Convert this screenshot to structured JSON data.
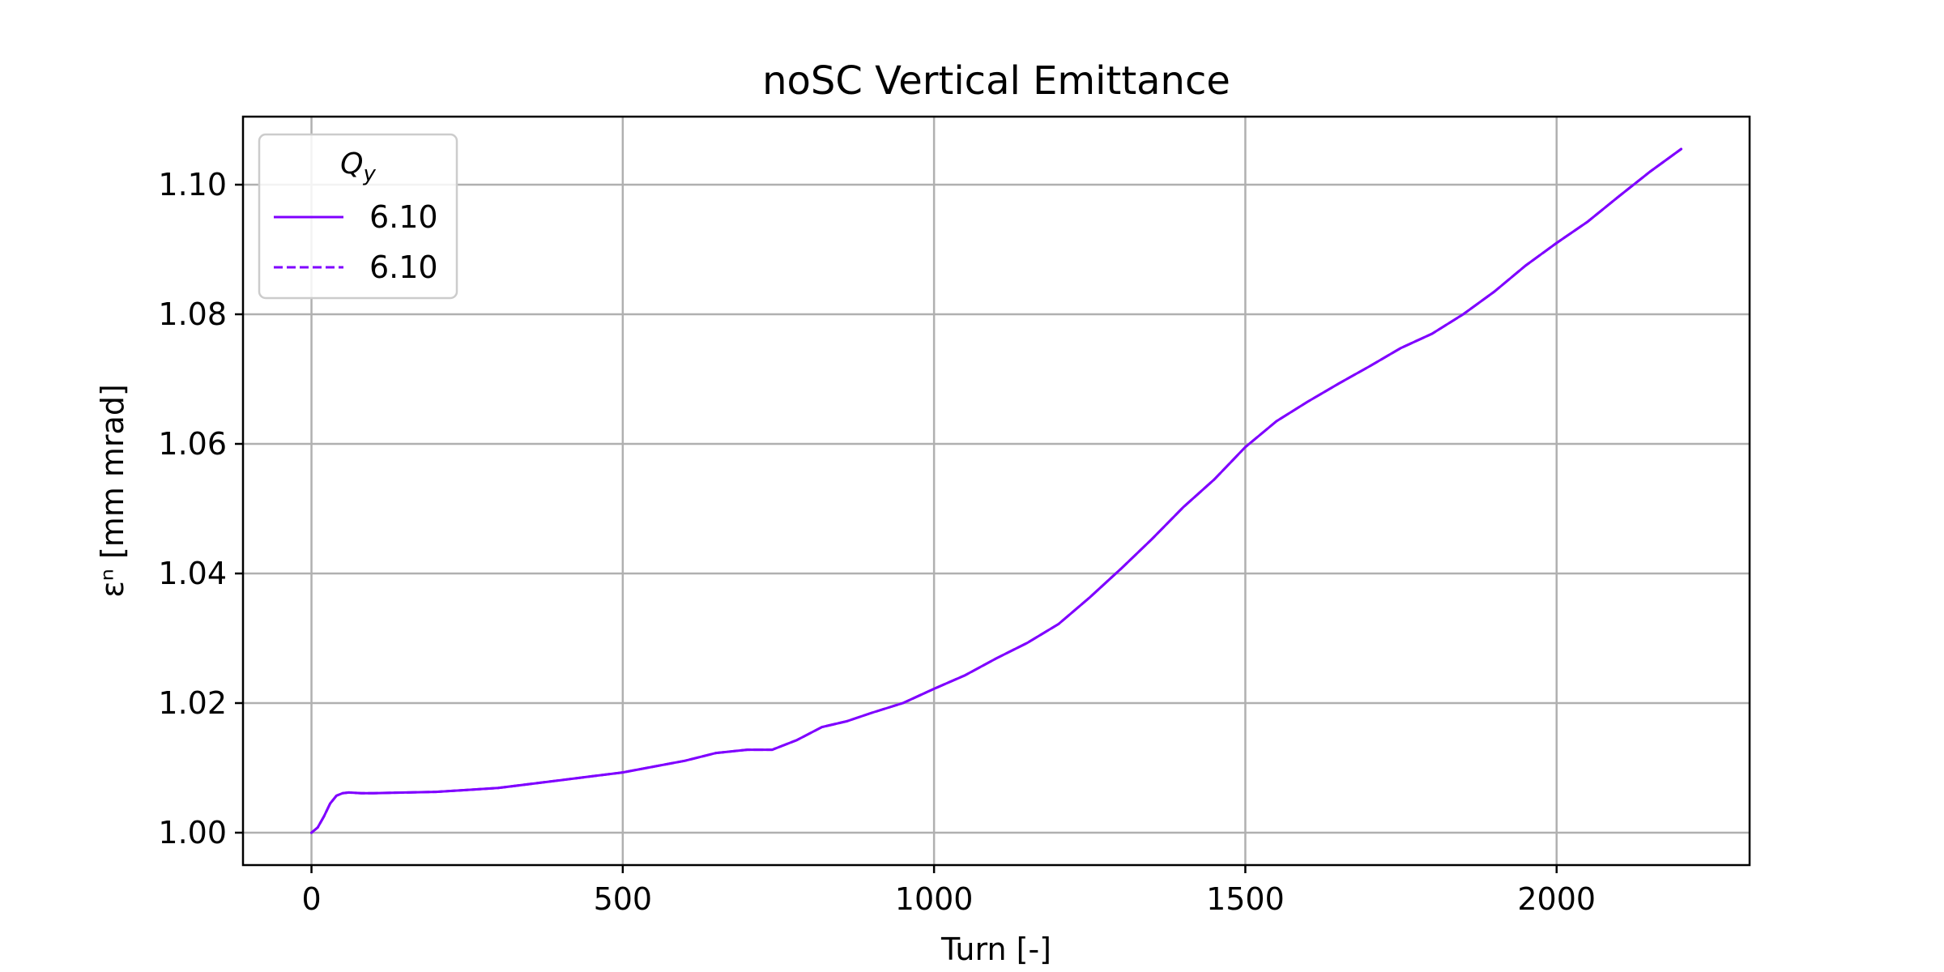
{
  "chart_data": {
    "type": "line",
    "title": "noSC Vertical Emittance",
    "xlabel": "Turn [-]",
    "ylabel": "εⁿ [mm mrad]",
    "xlim": [
      -110,
      2310
    ],
    "ylim": [
      0.995,
      1.1105
    ],
    "xticks": [
      0,
      500,
      1000,
      1500,
      2000
    ],
    "xtick_labels": [
      "0",
      "500",
      "1000",
      "1500",
      "2000"
    ],
    "yticks": [
      1.0,
      1.02,
      1.04,
      1.06,
      1.08,
      1.1
    ],
    "ytick_labels": [
      "1.00",
      "1.02",
      "1.04",
      "1.06",
      "1.08",
      "1.10"
    ],
    "grid": true,
    "legend": {
      "title": "Q",
      "title_sub": "y",
      "placement": "top-left"
    },
    "series": [
      {
        "name": "6.10",
        "style": "solid",
        "color": "#7f00ff",
        "x": [
          0,
          10,
          20,
          30,
          40,
          50,
          60,
          80,
          100,
          150,
          200,
          250,
          300,
          350,
          400,
          450,
          500,
          550,
          600,
          650,
          700,
          740,
          780,
          820,
          860,
          900,
          950,
          1000,
          1050,
          1100,
          1150,
          1200,
          1250,
          1300,
          1350,
          1400,
          1450,
          1500,
          1550,
          1600,
          1650,
          1700,
          1750,
          1800,
          1850,
          1900,
          1950,
          2000,
          2050,
          2100,
          2150,
          2200
        ],
        "y": [
          1.0,
          1.0008,
          1.0025,
          1.0045,
          1.0057,
          1.0061,
          1.0062,
          1.0061,
          1.0061,
          1.0062,
          1.0063,
          1.0066,
          1.0069,
          1.0075,
          1.0081,
          1.0087,
          1.0093,
          1.0102,
          1.0111,
          1.0123,
          1.0128,
          1.0128,
          1.0143,
          1.0163,
          1.0172,
          1.0185,
          1.02,
          1.0222,
          1.0243,
          1.0269,
          1.0293,
          1.0322,
          1.0363,
          1.0407,
          1.0453,
          1.0502,
          1.0545,
          1.0595,
          1.0635,
          1.0665,
          1.0693,
          1.072,
          1.0748,
          1.077,
          1.08,
          1.0835,
          1.0875,
          1.091,
          1.0943,
          1.0982,
          1.102,
          1.1055
        ]
      },
      {
        "name": "6.10",
        "style": "dashed",
        "color": "#7f00ff",
        "x": [
          0,
          10,
          20,
          30,
          40,
          50,
          60,
          80,
          100,
          150,
          200,
          250,
          300,
          350,
          400,
          450,
          500,
          550,
          600,
          650,
          700,
          740,
          780,
          820,
          860,
          900,
          950,
          1000,
          1050,
          1100,
          1150,
          1200,
          1250,
          1300,
          1350,
          1400,
          1450,
          1500,
          1550,
          1600,
          1650,
          1700,
          1750,
          1800,
          1850,
          1900,
          1950,
          2000,
          2050,
          2100,
          2150,
          2200
        ],
        "y": [
          1.0,
          1.0008,
          1.0025,
          1.0045,
          1.0057,
          1.0061,
          1.0062,
          1.0061,
          1.0061,
          1.0062,
          1.0063,
          1.0066,
          1.0069,
          1.0075,
          1.0081,
          1.0087,
          1.0093,
          1.0102,
          1.0111,
          1.0123,
          1.0128,
          1.0128,
          1.0143,
          1.0163,
          1.0172,
          1.0185,
          1.02,
          1.0222,
          1.0243,
          1.0269,
          1.0293,
          1.0322,
          1.0363,
          1.0407,
          1.0453,
          1.0502,
          1.0545,
          1.0595,
          1.0635,
          1.0665,
          1.0693,
          1.072,
          1.0748,
          1.077,
          1.08,
          1.0835,
          1.0875,
          1.091,
          1.0943,
          1.0982,
          1.102,
          1.1055
        ]
      }
    ]
  }
}
